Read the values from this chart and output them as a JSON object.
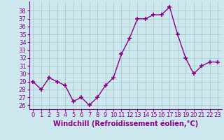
{
  "x": [
    0,
    1,
    2,
    3,
    4,
    5,
    6,
    7,
    8,
    9,
    10,
    11,
    12,
    13,
    14,
    15,
    16,
    17,
    18,
    19,
    20,
    21,
    22,
    23
  ],
  "y": [
    29,
    28,
    29.5,
    29,
    28.5,
    26.5,
    27,
    26,
    27,
    28.5,
    29.5,
    32.5,
    34.5,
    37,
    37,
    37.5,
    37.5,
    38.5,
    35,
    32,
    30,
    31,
    31.5,
    31.5
  ],
  "line_color": "#880088",
  "marker": "+",
  "markersize": 4,
  "linewidth": 1,
  "bg_color": "#cce8ee",
  "grid_color": "#aacccc",
  "xlabel": "Windchill (Refroidissement éolien,°C)",
  "ylabel_ticks": [
    26,
    27,
    28,
    29,
    30,
    31,
    32,
    33,
    34,
    35,
    36,
    37,
    38
  ],
  "ylim": [
    25.5,
    39.2
  ],
  "xlim": [
    -0.5,
    23.5
  ],
  "tick_color": "#880088",
  "tick_fontsize": 6,
  "xlabel_fontsize": 7,
  "xlabel_color": "#880088"
}
